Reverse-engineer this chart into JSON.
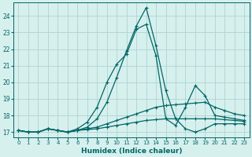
{
  "xlabel": "Humidex (Indice chaleur)",
  "background_color": "#d6f0ee",
  "grid_color": "#aed4d0",
  "line_color": "#006666",
  "ylim": [
    16.7,
    24.8
  ],
  "xlim": [
    -0.5,
    23.5
  ],
  "yticks": [
    17,
    18,
    19,
    20,
    21,
    22,
    23,
    24
  ],
  "xticks": [
    0,
    1,
    2,
    3,
    4,
    5,
    6,
    7,
    8,
    9,
    10,
    11,
    12,
    13,
    14,
    15,
    16,
    17,
    18,
    19,
    20,
    21,
    22,
    23
  ],
  "series": [
    {
      "y": [
        17.1,
        17.0,
        17.0,
        17.2,
        17.1,
        17.0,
        17.1,
        17.3,
        17.8,
        18.8,
        20.3,
        21.9,
        23.4,
        24.5,
        22.2,
        19.5,
        17.8,
        17.2,
        17.0,
        17.2,
        17.5,
        17.5,
        17.5,
        17.5
      ],
      "marker": "+",
      "ms": 3.5,
      "lw": 0.9
    },
    {
      "y": [
        17.1,
        17.0,
        17.0,
        17.2,
        17.1,
        17.0,
        17.2,
        17.6,
        18.5,
        20.0,
        21.1,
        21.7,
        23.2,
        23.5,
        21.6,
        17.8,
        17.4,
        18.5,
        19.8,
        19.2,
        18.0,
        17.9,
        17.8,
        17.7
      ],
      "marker": "+",
      "ms": 3.5,
      "lw": 0.9
    },
    {
      "y": [
        17.1,
        17.0,
        17.0,
        17.2,
        17.1,
        17.0,
        17.1,
        17.2,
        17.3,
        17.5,
        17.7,
        17.9,
        18.1,
        18.3,
        18.5,
        18.6,
        18.65,
        18.7,
        18.75,
        18.8,
        18.5,
        18.3,
        18.1,
        18.0
      ],
      "marker": "+",
      "ms": 3.5,
      "lw": 0.9
    },
    {
      "y": [
        17.1,
        17.0,
        17.0,
        17.2,
        17.1,
        17.0,
        17.1,
        17.15,
        17.2,
        17.3,
        17.4,
        17.5,
        17.6,
        17.7,
        17.75,
        17.8,
        17.8,
        17.8,
        17.8,
        17.8,
        17.8,
        17.75,
        17.7,
        17.65
      ],
      "marker": "+",
      "ms": 3.5,
      "lw": 0.9
    }
  ]
}
